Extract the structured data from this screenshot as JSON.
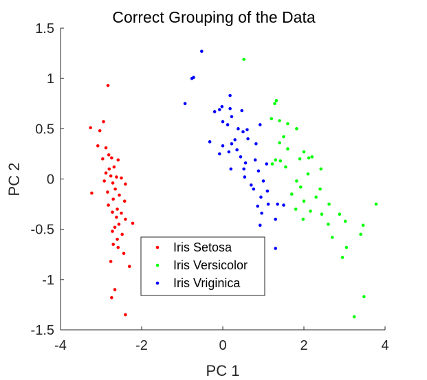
{
  "chart_data": {
    "type": "scatter",
    "title": "Correct Grouping of the Data",
    "xlabel": "PC 1",
    "ylabel": "PC 2",
    "xlim": [
      -4,
      4
    ],
    "ylim": [
      -1.5,
      1.5
    ],
    "xticks": [
      -4,
      -2,
      0,
      2,
      4
    ],
    "yticks": [
      -1.5,
      -1,
      -0.5,
      0,
      0.5,
      1,
      1.5
    ],
    "xtick_labels": [
      "-4",
      "-2",
      "0",
      "2",
      "4"
    ],
    "ytick_labels": [
      "-1.5",
      "-1",
      "-0.5",
      "0",
      "0.5",
      "1",
      "1.5"
    ],
    "grid": false,
    "legend_position": "bottom-center",
    "series": [
      {
        "name": "Iris Setosa",
        "color": "#ff0000",
        "points": [
          [
            -2.83,
            0.93
          ],
          [
            -2.94,
            0.57
          ],
          [
            -3.26,
            0.51
          ],
          [
            -3.03,
            0.48
          ],
          [
            -3.08,
            0.33
          ],
          [
            -2.88,
            0.31
          ],
          [
            -2.96,
            0.2
          ],
          [
            -2.81,
            0.24
          ],
          [
            -2.74,
            0.21
          ],
          [
            -2.58,
            0.19
          ],
          [
            -2.68,
            0.12
          ],
          [
            -2.8,
            0.1
          ],
          [
            -2.88,
            0.06
          ],
          [
            -2.76,
            0.03
          ],
          [
            -2.62,
            0.02
          ],
          [
            -2.5,
            0.01
          ],
          [
            -2.92,
            -0.02
          ],
          [
            -2.71,
            -0.04
          ],
          [
            -2.4,
            -0.05
          ],
          [
            -2.65,
            -0.1
          ],
          [
            -2.84,
            -0.13
          ],
          [
            -3.23,
            -0.14
          ],
          [
            -2.55,
            -0.16
          ],
          [
            -2.7,
            -0.2
          ],
          [
            -2.42,
            -0.22
          ],
          [
            -2.82,
            -0.26
          ],
          [
            -2.6,
            -0.3
          ],
          [
            -2.72,
            -0.33
          ],
          [
            -2.5,
            -0.34
          ],
          [
            -2.62,
            -0.38
          ],
          [
            -2.4,
            -0.4
          ],
          [
            -2.22,
            -0.44
          ],
          [
            -2.56,
            -0.45
          ],
          [
            -2.66,
            -0.48
          ],
          [
            -2.72,
            -0.52
          ],
          [
            -2.48,
            -0.55
          ],
          [
            -2.6,
            -0.6
          ],
          [
            -2.7,
            -0.65
          ],
          [
            -2.58,
            -0.68
          ],
          [
            -2.44,
            -0.74
          ],
          [
            -2.76,
            -0.82
          ],
          [
            -2.3,
            -0.87
          ],
          [
            -2.66,
            -1.1
          ],
          [
            -2.74,
            -1.18
          ],
          [
            -2.4,
            -1.35
          ]
        ]
      },
      {
        "name": "Iris Versicolor",
        "color": "#00ff00",
        "points": [
          [
            0.52,
            1.19
          ],
          [
            1.32,
            0.78
          ],
          [
            1.28,
            0.75
          ],
          [
            1.2,
            0.6
          ],
          [
            1.4,
            0.58
          ],
          [
            1.6,
            0.55
          ],
          [
            1.82,
            0.5
          ],
          [
            1.5,
            0.42
          ],
          [
            1.4,
            0.36
          ],
          [
            1.6,
            0.3
          ],
          [
            2.0,
            0.27
          ],
          [
            2.2,
            0.22
          ],
          [
            2.12,
            0.21
          ],
          [
            1.9,
            0.2
          ],
          [
            1.3,
            0.19
          ],
          [
            1.42,
            0.18
          ],
          [
            1.22,
            0.15
          ],
          [
            1.55,
            0.12
          ],
          [
            2.42,
            0.1
          ],
          [
            2.1,
            0.05
          ],
          [
            1.82,
            -0.02
          ],
          [
            1.92,
            -0.08
          ],
          [
            2.4,
            -0.1
          ],
          [
            1.7,
            -0.15
          ],
          [
            2.3,
            -0.18
          ],
          [
            2.0,
            -0.22
          ],
          [
            2.62,
            -0.25
          ],
          [
            3.78,
            -0.25
          ],
          [
            1.8,
            -0.3
          ],
          [
            2.16,
            -0.32
          ],
          [
            2.88,
            -0.35
          ],
          [
            2.44,
            -0.35
          ],
          [
            1.98,
            -0.4
          ],
          [
            3.02,
            -0.42
          ],
          [
            2.6,
            -0.45
          ],
          [
            3.46,
            -0.46
          ],
          [
            3.4,
            -0.55
          ],
          [
            2.7,
            -0.58
          ],
          [
            3.05,
            -0.68
          ],
          [
            2.95,
            -0.78
          ],
          [
            3.48,
            -1.17
          ],
          [
            3.24,
            -1.37
          ]
        ]
      },
      {
        "name": "Iris Vriginica",
        "color": "#0000ff",
        "points": [
          [
            -0.52,
            1.27
          ],
          [
            -0.72,
            1.01
          ],
          [
            -0.76,
            1.0
          ],
          [
            -0.93,
            0.75
          ],
          [
            0.18,
            0.83
          ],
          [
            -0.02,
            0.72
          ],
          [
            -0.08,
            0.69
          ],
          [
            0.18,
            0.7
          ],
          [
            0.47,
            0.68
          ],
          [
            -0.2,
            0.67
          ],
          [
            0.22,
            0.62
          ],
          [
            0.0,
            0.57
          ],
          [
            0.12,
            0.54
          ],
          [
            0.38,
            0.5
          ],
          [
            0.6,
            0.49
          ],
          [
            0.92,
            0.54
          ],
          [
            0.5,
            0.47
          ],
          [
            0.62,
            0.4
          ],
          [
            0.3,
            0.39
          ],
          [
            0.22,
            0.35
          ],
          [
            -0.32,
            0.37
          ],
          [
            0.0,
            0.33
          ],
          [
            0.35,
            0.29
          ],
          [
            0.82,
            0.35
          ],
          [
            0.15,
            0.27
          ],
          [
            -0.08,
            0.25
          ],
          [
            0.44,
            0.22
          ],
          [
            0.8,
            0.19
          ],
          [
            0.56,
            0.16
          ],
          [
            1.08,
            0.15
          ],
          [
            0.2,
            0.1
          ],
          [
            0.52,
            0.1
          ],
          [
            0.88,
            0.08
          ],
          [
            0.54,
            0.02
          ],
          [
            1.0,
            -0.02
          ],
          [
            0.7,
            -0.06
          ],
          [
            0.76,
            -0.1
          ],
          [
            1.1,
            -0.12
          ],
          [
            0.94,
            -0.18
          ],
          [
            0.86,
            -0.27
          ],
          [
            1.12,
            -0.25
          ],
          [
            1.35,
            -0.25
          ],
          [
            1.5,
            -0.26
          ],
          [
            0.96,
            -0.34
          ],
          [
            1.3,
            -0.4
          ],
          [
            0.92,
            -0.46
          ],
          [
            1.3,
            -0.69
          ]
        ]
      }
    ]
  }
}
